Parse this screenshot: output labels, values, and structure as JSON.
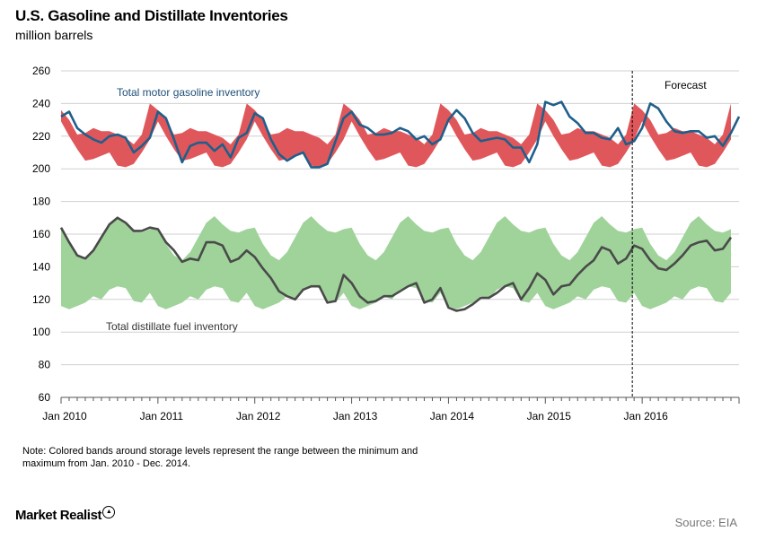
{
  "header": {
    "title": "U.S. Gasoline and Distillate Inventories",
    "subtitle": "million barrels"
  },
  "note": {
    "line1": "Note:  Colored bands around storage levels represent the range between the minimum and",
    "line2": "maximum from Jan. 2010 - Dec. 2014."
  },
  "footer": {
    "brand": "Market Realist",
    "source": "Source: EIA"
  },
  "chart_data": {
    "type": "line",
    "title": "U.S. Gasoline and Distillate Inventories",
    "ylabel": "million barrels",
    "ylim": [
      60,
      260
    ],
    "y_ticks": [
      60,
      80,
      100,
      120,
      140,
      160,
      180,
      200,
      220,
      240,
      260
    ],
    "x_ticks": [
      "Jan 2010",
      "Jan 2011",
      "Jan 2012",
      "Jan 2013",
      "Jan 2014",
      "Jan 2015",
      "Jan 2016"
    ],
    "x_range_months": [
      "Jan 2010",
      "Dec 2016"
    ],
    "grid": "horizontal",
    "forecast": {
      "label": "Forecast",
      "starts": "Dec 2015"
    },
    "colors": {
      "gasoline_line": "#1f5f8b",
      "gasoline_band": "#e0575b",
      "distillate_line": "#4a4a4a",
      "distillate_band": "#9fd39a",
      "grid": "#d0d0d0"
    },
    "annotations": {
      "gasoline": "Total motor gasoline inventory",
      "distillate": "Total distillate fuel inventory"
    },
    "bands": {
      "gasoline_min": [
        229,
        220,
        212,
        205,
        206,
        208,
        210,
        202,
        201,
        203,
        210,
        218
      ],
      "gasoline_max": [
        236,
        230,
        221,
        222,
        225,
        223,
        223,
        221,
        219,
        215,
        221,
        240
      ],
      "distillate_min": [
        116,
        114,
        116,
        118,
        122,
        120,
        126,
        128,
        127,
        119,
        118,
        124
      ],
      "distillate_max": [
        164,
        154,
        147,
        144,
        149,
        158,
        167,
        171,
        166,
        162,
        161,
        163
      ]
    },
    "series": [
      {
        "name": "Total motor gasoline inventory",
        "start": "Jan 2010",
        "values": [
          232,
          235,
          225,
          221,
          218,
          216,
          220,
          221,
          219,
          210,
          214,
          219,
          235,
          231,
          218,
          204,
          214,
          216,
          216,
          211,
          215,
          207,
          219,
          222,
          234,
          231,
          218,
          209,
          205,
          208,
          210,
          201,
          201,
          203,
          217,
          231,
          235,
          227,
          225,
          221,
          221,
          222,
          225,
          223,
          218,
          220,
          215,
          218,
          230,
          236,
          231,
          222,
          217,
          218,
          219,
          218,
          213,
          213,
          204,
          215,
          241,
          239,
          241,
          232,
          228,
          222,
          222,
          219,
          218,
          225,
          215,
          217,
          225,
          240,
          237,
          229,
          223,
          222,
          223,
          223,
          219,
          220,
          214,
          222,
          232
        ]
      },
      {
        "name": "Total distillate fuel inventory",
        "start": "Jan 2010",
        "values": [
          164,
          155,
          147,
          145,
          150,
          158,
          166,
          170,
          167,
          162,
          162,
          164,
          163,
          155,
          150,
          143,
          145,
          144,
          155,
          155,
          153,
          143,
          145,
          150,
          146,
          139,
          133,
          125,
          122,
          120,
          126,
          128,
          128,
          118,
          119,
          135,
          130,
          122,
          118,
          119,
          122,
          122,
          125,
          128,
          130,
          118,
          120,
          127,
          115,
          113,
          114,
          117,
          121,
          121,
          124,
          128,
          130,
          120,
          127,
          136,
          132,
          123,
          128,
          129,
          135,
          140,
          144,
          152,
          150,
          142,
          145,
          153,
          151,
          144,
          139,
          138,
          142,
          147,
          153,
          155,
          156,
          150,
          151,
          158
        ]
      }
    ]
  }
}
